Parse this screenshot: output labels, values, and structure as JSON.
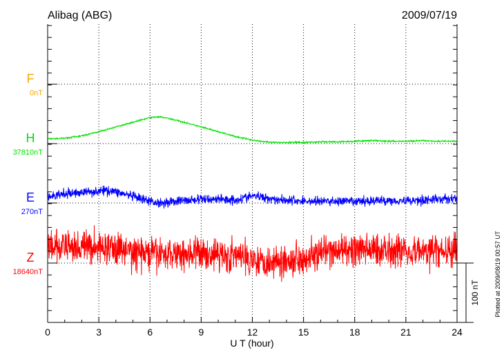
{
  "chart_data": {
    "type": "line",
    "title": "Alibag (ABG)",
    "date": "2009/07/19",
    "xlabel": "U T (hour)",
    "xlim": [
      0,
      24
    ],
    "xticks": [
      "0",
      "3",
      "6",
      "9",
      "12",
      "15",
      "18",
      "21",
      "24"
    ],
    "scale_label": "100 nT",
    "footer": "Plotted at 2009/08/19 00:57 UT",
    "grid": true,
    "series": [
      {
        "name": "F",
        "baseline_label": "0nT",
        "color": "#f5a800",
        "points": []
      },
      {
        "name": "H",
        "baseline_label": "37810nT",
        "color": "#00e000",
        "noise": 0.6,
        "points": [
          [
            0,
            8
          ],
          [
            1,
            9
          ],
          [
            2,
            13
          ],
          [
            3,
            20
          ],
          [
            4,
            28
          ],
          [
            5,
            36
          ],
          [
            6,
            44
          ],
          [
            6.5,
            45
          ],
          [
            7,
            43
          ],
          [
            8,
            36
          ],
          [
            9,
            28
          ],
          [
            10,
            20
          ],
          [
            11,
            12
          ],
          [
            12,
            6
          ],
          [
            13,
            2
          ],
          [
            14,
            2
          ],
          [
            15,
            2
          ],
          [
            16,
            3
          ],
          [
            17,
            3
          ],
          [
            18,
            4
          ],
          [
            19,
            5
          ],
          [
            20,
            4
          ],
          [
            21,
            4
          ],
          [
            22,
            5
          ],
          [
            23,
            4
          ],
          [
            24,
            4
          ]
        ]
      },
      {
        "name": "E",
        "baseline_label": "270nT",
        "color": "#0000ff",
        "noise": 4,
        "points": [
          [
            0,
            10
          ],
          [
            1,
            15
          ],
          [
            2,
            18
          ],
          [
            3,
            20
          ],
          [
            3.7,
            21
          ],
          [
            4.5,
            15
          ],
          [
            5.5,
            6
          ],
          [
            6.5,
            0
          ],
          [
            7.5,
            3
          ],
          [
            9,
            6
          ],
          [
            10,
            7
          ],
          [
            11,
            5
          ],
          [
            12,
            12
          ],
          [
            12.5,
            10
          ],
          [
            13.5,
            6
          ],
          [
            15,
            3
          ],
          [
            17,
            3
          ],
          [
            18,
            2
          ],
          [
            19,
            4
          ],
          [
            21,
            4
          ],
          [
            22,
            5
          ],
          [
            24,
            8
          ]
        ]
      },
      {
        "name": "Z",
        "baseline_label": "18640nT",
        "color": "#ff0000",
        "noise": 14,
        "points": [
          [
            0,
            25
          ],
          [
            2,
            28
          ],
          [
            4,
            25
          ],
          [
            5,
            18
          ],
          [
            6,
            15
          ],
          [
            8,
            17
          ],
          [
            10,
            15
          ],
          [
            12,
            8
          ],
          [
            13,
            2
          ],
          [
            14,
            5
          ],
          [
            15,
            10
          ],
          [
            16,
            15
          ],
          [
            17,
            20
          ],
          [
            18,
            22
          ],
          [
            20,
            24
          ],
          [
            22,
            20
          ],
          [
            24,
            20
          ]
        ]
      }
    ]
  }
}
